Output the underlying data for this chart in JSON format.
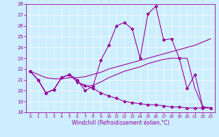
{
  "bg_color": "#cceeff",
  "line_color": "#990099",
  "xlabel": "Windchill (Refroidissement éolien,°C)",
  "xlim": [
    -0.5,
    23.5
  ],
  "ylim": [
    18,
    28
  ],
  "yticks": [
    18,
    19,
    20,
    21,
    22,
    23,
    24,
    25,
    26,
    27,
    28
  ],
  "xticks": [
    0,
    1,
    2,
    3,
    4,
    5,
    6,
    7,
    8,
    9,
    10,
    11,
    12,
    13,
    14,
    15,
    16,
    17,
    18,
    19,
    20,
    21,
    22,
    23
  ],
  "series": [
    {
      "x": [
        0,
        1,
        2,
        3,
        4,
        5,
        6,
        7,
        8,
        9,
        10,
        11,
        12,
        13,
        14,
        15,
        16,
        17,
        18,
        19,
        20,
        21,
        22,
        23
      ],
      "y": [
        21.8,
        21.0,
        19.8,
        20.1,
        21.2,
        21.5,
        21.0,
        20.0,
        20.4,
        22.8,
        24.2,
        26.0,
        26.3,
        25.7,
        23.0,
        27.1,
        27.8,
        24.7,
        24.8,
        23.0,
        20.2,
        21.5,
        18.5,
        18.4
      ],
      "marker": "D",
      "markersize": 2.5,
      "linewidth": 0.8
    },
    {
      "x": [
        0,
        1,
        2,
        3,
        4,
        5,
        6,
        7,
        8,
        9,
        10,
        11,
        12,
        13,
        14,
        15,
        16,
        17,
        18,
        19,
        20,
        21,
        22,
        23
      ],
      "y": [
        21.8,
        21.0,
        19.8,
        20.1,
        21.2,
        21.5,
        20.8,
        20.5,
        20.2,
        19.8,
        19.5,
        19.3,
        19.0,
        18.9,
        18.8,
        18.7,
        18.7,
        18.6,
        18.5,
        18.5,
        18.4,
        18.4,
        18.4,
        18.4
      ],
      "marker": "D",
      "markersize": 2.5,
      "linewidth": 0.8
    },
    {
      "x": [
        0,
        1,
        2,
        3,
        4,
        5,
        6,
        7,
        8,
        9,
        10,
        11,
        12,
        13,
        14,
        15,
        16,
        17,
        18,
        19,
        20,
        21,
        22,
        23
      ],
      "y": [
        21.8,
        21.5,
        21.2,
        21.1,
        21.1,
        21.2,
        21.2,
        21.3,
        21.5,
        21.7,
        22.0,
        22.2,
        22.4,
        22.6,
        22.8,
        23.0,
        23.2,
        23.4,
        23.6,
        23.8,
        24.0,
        24.2,
        24.5,
        24.8
      ],
      "marker": null,
      "markersize": 0,
      "linewidth": 0.8
    },
    {
      "x": [
        0,
        1,
        2,
        3,
        4,
        5,
        6,
        7,
        8,
        9,
        10,
        11,
        12,
        13,
        14,
        15,
        16,
        17,
        18,
        19,
        20,
        21,
        22,
        23
      ],
      "y": [
        21.8,
        21.0,
        19.8,
        20.1,
        21.2,
        21.5,
        20.8,
        20.4,
        20.5,
        20.8,
        21.2,
        21.5,
        21.8,
        22.0,
        22.2,
        22.5,
        22.7,
        22.9,
        23.0,
        23.0,
        23.0,
        20.2,
        18.5,
        18.4
      ],
      "marker": null,
      "markersize": 0,
      "linewidth": 0.8
    }
  ]
}
